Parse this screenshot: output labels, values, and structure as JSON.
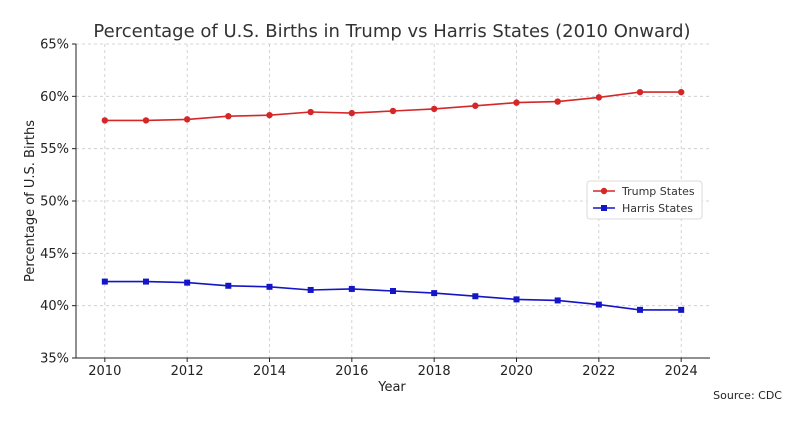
{
  "chart_data": {
    "type": "line",
    "title": "Percentage of U.S. Births in Trump vs Harris States (2010 Onward)",
    "xlabel": "Year",
    "ylabel": "Percentage of U.S. Births",
    "source": "Source: CDC",
    "x": [
      2010,
      2011,
      2012,
      2013,
      2014,
      2015,
      2016,
      2017,
      2018,
      2019,
      2020,
      2021,
      2022,
      2023,
      2024
    ],
    "xticks": [
      2010,
      2012,
      2014,
      2016,
      2018,
      2020,
      2022,
      2024
    ],
    "xtick_labels": [
      "2010",
      "2012",
      "2014",
      "2016",
      "2018",
      "2020",
      "2022",
      "2024"
    ],
    "xlim": [
      2009.3,
      2024.7
    ],
    "ylim": [
      35,
      65
    ],
    "yticks": [
      35,
      40,
      45,
      50,
      55,
      60,
      65
    ],
    "ytick_labels": [
      "35%",
      "40%",
      "45%",
      "50%",
      "55%",
      "60%",
      "65%"
    ],
    "grid": true,
    "legend_position": "center-right",
    "series": [
      {
        "name": "Trump States",
        "color": "#d62728",
        "marker": "circle",
        "values": [
          57.7,
          57.7,
          57.8,
          58.1,
          58.2,
          58.5,
          58.4,
          58.6,
          58.8,
          59.1,
          59.4,
          59.5,
          59.9,
          60.4,
          60.4
        ]
      },
      {
        "name": "Harris States",
        "color": "#1515c8",
        "marker": "square",
        "values": [
          42.3,
          42.3,
          42.2,
          41.9,
          41.8,
          41.5,
          41.6,
          41.4,
          41.2,
          40.9,
          40.6,
          40.5,
          40.1,
          39.6,
          39.6
        ]
      }
    ]
  }
}
